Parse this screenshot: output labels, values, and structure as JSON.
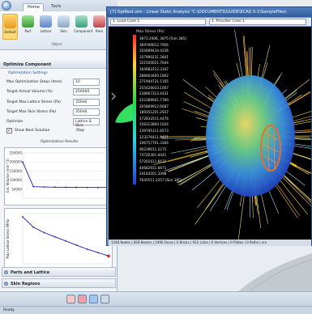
{
  "ribbon": {
    "tabs": [
      "Home",
      "Tools"
    ],
    "buttons": [
      "Default",
      "Part",
      "Lattice",
      "Skin",
      "Component",
      "Rem"
    ],
    "group_label": "Object"
  },
  "panel": {
    "title": "Optimize Component",
    "section_settings": "Optimization Settings",
    "fields": [
      {
        "label": "Max Optimization Steps (Iters)",
        "value": "10"
      },
      {
        "label": "Target Actual Volume (%)",
        "value": "250000"
      },
      {
        "label": "Target Max Lattice Stress (Pa)",
        "value": "350e6"
      },
      {
        "label": "Target Max Skin Stress (Pa)",
        "value": "350e6"
      },
      {
        "label": "Optimize",
        "value": "Lattice & Skin"
      }
    ],
    "show_best_label": "Show Best Solution",
    "stop_label": "Stop",
    "results_label": "Optimization Results",
    "chart1_ylabel": "Est. Volume (mm^3)",
    "chart1_ticks": [
      "250000",
      "200000",
      "150000",
      "100000",
      "50000"
    ],
    "chart2_ylabel": "Max Lattice Stress (MPa)",
    "accordion": [
      "Parts and Lattice",
      "Skin Regions"
    ]
  },
  "chart_data": [
    {
      "type": "line",
      "ylabel": "Est. Volume (mm^3)",
      "ylim": [
        0,
        250000
      ],
      "x": [
        0,
        1,
        2,
        3,
        4,
        5,
        6,
        7,
        8
      ],
      "series": [
        {
          "values": [
            200000,
            64000,
            62000,
            61000,
            60500,
            60000,
            59800,
            59600,
            59500
          ]
        }
      ]
    },
    {
      "type": "line",
      "ylabel": "Max Lattice Stress (MPa)",
      "x": [
        0,
        1,
        2,
        3,
        4,
        5,
        6,
        7,
        8
      ],
      "series": [
        {
          "values": [
            95,
            80,
            72,
            66,
            60,
            54,
            48,
            43,
            38
          ]
        }
      ]
    }
  ],
  "window": {
    "title": "[7] OptRest.stm : Linear Static Analysis \"C:\\DOCUMENTS\\GUIDE\\ECAD 5-1\\SampleFiles\\",
    "combo1": "1. Load Case 1",
    "combo2": "1. Provider Case 1",
    "legend_title": "Max Stress (Pa)",
    "legend_values": [
      "3873.2406, 3875 [Sim 385]",
      "369789012.7956",
      "354489434.4236",
      "337990231.2841",
      "321500021.7644",
      "304982212.3347",
      "288463400.1802",
      "271944721.1165",
      "255426033.1007",
      "238907312.4431",
      "222388601.7769",
      "205869912.6687",
      "189351201.2937",
      "172832511.4476",
      "156313800.1024",
      "139795111.6573",
      "123276411.8421",
      "106757701.3364",
      "90239011.2275",
      "73720301.0041",
      "57201611.6632",
      "40682911.6671",
      "24164201.3398",
      "7645511.2257 [Sim 385]"
    ],
    "status": "1248 Nodes | 828 Beams | 2490 Faces | 0 Bricks | 912 Links | 0 Vertices | 0 Plates | 0 Paths | nm"
  },
  "statusbar": "Ready"
}
